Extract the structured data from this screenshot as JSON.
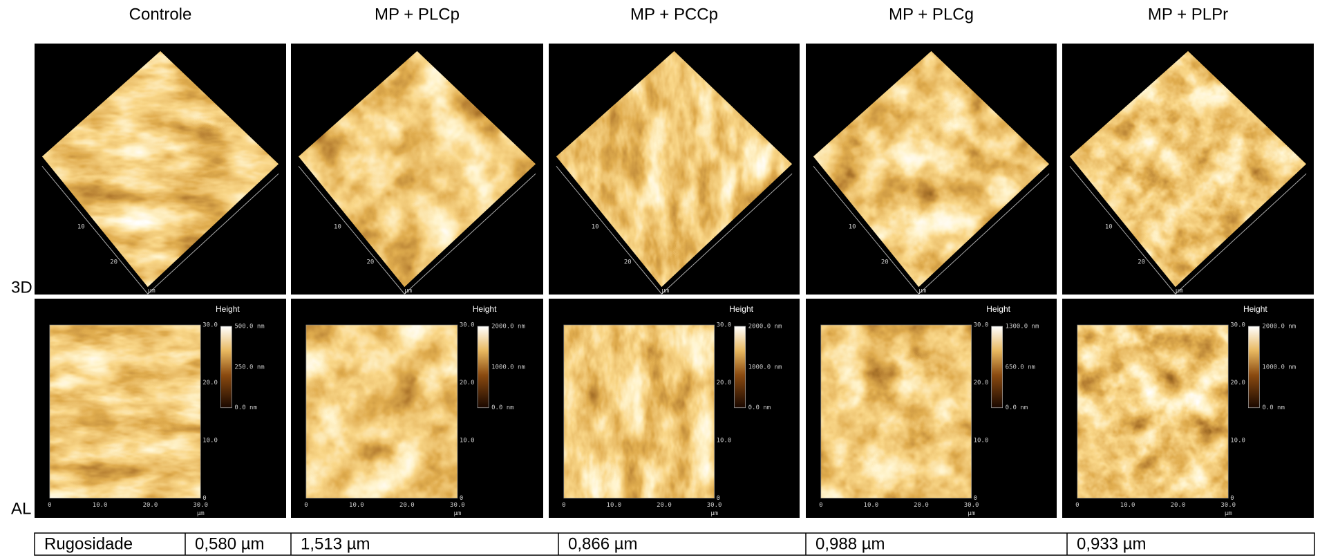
{
  "columns": [
    {
      "title": "Controle",
      "height_label": "Height",
      "colorbar": [
        "500.0 nm",
        "250.0 nm",
        "0.0 nm"
      ]
    },
    {
      "title": "MP + PLCp",
      "height_label": "Height",
      "colorbar": [
        "2000.0 nm",
        "1000.0 nm",
        "0.0 nm"
      ]
    },
    {
      "title": "MP + PCCp",
      "height_label": "Height",
      "colorbar": [
        "2000.0 nm",
        "1000.0 nm",
        "0.0 nm"
      ]
    },
    {
      "title": "MP + PLCg",
      "height_label": "Height",
      "colorbar": [
        "1300.0 nm",
        "650.0 nm",
        "0.0 nm"
      ]
    },
    {
      "title": "MP +   PLPr",
      "height_label": "Height",
      "colorbar": [
        "2000.0 nm",
        "1000.0 nm",
        "0.0 nm"
      ]
    }
  ],
  "row_labels": [
    "3D",
    "AL"
  ],
  "axis_ticks": [
    "0",
    "10.0",
    "20.0",
    "30.0"
  ],
  "axis_ticks_3d": [
    "10",
    "20"
  ],
  "axis_unit": "µm",
  "table": {
    "header": "Rugosidade",
    "values": [
      "0,580 µm",
      "1,513 µm",
      "0,866 µm",
      "0,988 µm",
      "0,933 µm"
    ]
  }
}
